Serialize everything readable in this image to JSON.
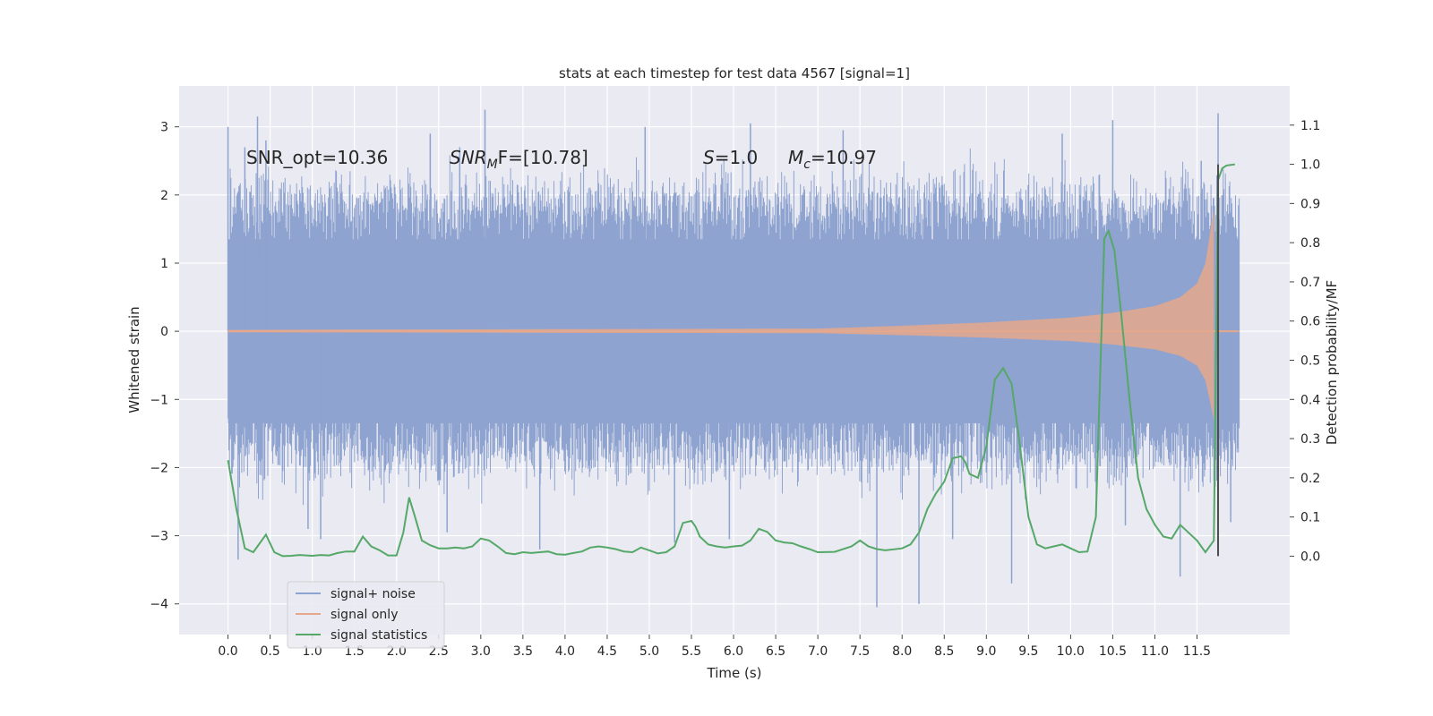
{
  "chart_data": {
    "type": "line",
    "title": "stats at each timestep for test data 4567 [signal=1]",
    "xlabel": "Time (s)",
    "ylabel": "Whitened strain",
    "ylabel_right": "Detection probability/MF",
    "xlim": [
      -0.58,
      12.6
    ],
    "ylim": [
      -4.45,
      3.6
    ],
    "ylim_right": [
      -0.2,
      1.2
    ],
    "xticks": [
      0.0,
      0.5,
      1.0,
      1.5,
      2.0,
      2.5,
      3.0,
      3.5,
      4.0,
      4.5,
      5.0,
      5.5,
      6.0,
      6.5,
      7.0,
      7.5,
      8.0,
      8.5,
      9.0,
      9.5,
      10.0,
      10.5,
      11.0,
      11.5
    ],
    "xtick_labels": [
      "0.0",
      "0.5",
      "1.0",
      "1.5",
      "2.0",
      "2.5",
      "3.0",
      "3.5",
      "4.0",
      "4.5",
      "5.0",
      "5.5",
      "6.0",
      "6.5",
      "7.0",
      "7.5",
      "8.0",
      "8.5",
      "9.0",
      "9.5",
      "10.0",
      "10.5",
      "11.0",
      "11.5"
    ],
    "yticks": [
      3,
      2,
      1,
      0,
      -1,
      -2,
      -3,
      -4
    ],
    "ytick_labels": [
      "3",
      "2",
      "1",
      "0",
      "−1",
      "−2",
      "−3",
      "−4"
    ],
    "yticks_right": [
      1.1,
      1.0,
      0.9,
      0.8,
      0.7,
      0.6,
      0.5,
      0.4,
      0.3,
      0.2,
      0.1,
      0.0
    ],
    "ytick_labels_right": [
      "1.1",
      "1.0",
      "0.9",
      "0.8",
      "0.7",
      "0.6",
      "0.5",
      "0.4",
      "0.3",
      "0.2",
      "0.1",
      "0.0"
    ],
    "grid": true,
    "legend_position": "lower-left",
    "annotations": {
      "snr_opt": "SNR_opt=10.36",
      "snr_mf_prefix": "SNR",
      "snr_mf_sub": "M",
      "snr_mf_suffix": "F=[10.78]",
      "s_prefix": "S",
      "s_suffix": "=1.0",
      "mc_prefix": "M",
      "mc_sub": "c",
      "mc_suffix": "=10.97"
    },
    "series": [
      {
        "name": "signal+ noise",
        "color": "#8ea3cf",
        "axis": "left",
        "description_range": [
          -4.1,
          3.3
        ],
        "typical_band": [
          -1.5,
          1.6
        ],
        "t_range": [
          0.0,
          12.0
        ],
        "spikes": [
          {
            "t": 0.0,
            "v": 3.0
          },
          {
            "t": 0.2,
            "v": 2.7
          },
          {
            "t": 0.35,
            "v": 3.15
          },
          {
            "t": 0.45,
            "v": 2.8
          },
          {
            "t": 0.12,
            "v": -3.35
          },
          {
            "t": 0.95,
            "v": -2.9
          },
          {
            "t": 1.1,
            "v": -3.05
          },
          {
            "t": 2.4,
            "v": 2.9
          },
          {
            "t": 2.6,
            "v": -2.95
          },
          {
            "t": 2.75,
            "v": 2.7
          },
          {
            "t": 3.05,
            "v": 3.25
          },
          {
            "t": 3.7,
            "v": -3.2
          },
          {
            "t": 4.95,
            "v": 3.0
          },
          {
            "t": 5.3,
            "v": -3.1
          },
          {
            "t": 5.95,
            "v": -3.05
          },
          {
            "t": 6.2,
            "v": 3.05
          },
          {
            "t": 7.3,
            "v": 2.95
          },
          {
            "t": 7.7,
            "v": -4.05
          },
          {
            "t": 8.2,
            "v": -4.0
          },
          {
            "t": 8.6,
            "v": -3.05
          },
          {
            "t": 9.3,
            "v": -3.7
          },
          {
            "t": 10.5,
            "v": 3.1
          },
          {
            "t": 10.65,
            "v": -2.85
          },
          {
            "t": 11.3,
            "v": -3.6
          },
          {
            "t": 11.55,
            "v": 2.5
          },
          {
            "t": 11.75,
            "v": 3.2
          },
          {
            "t": 11.9,
            "v": -2.8
          },
          {
            "t": 9.9,
            "v": 2.9
          }
        ]
      },
      {
        "name": "signal only",
        "color": "#e6a88c",
        "axis": "left",
        "t": [
          0.0,
          7.0,
          8.0,
          9.0,
          10.0,
          10.5,
          11.0,
          11.3,
          11.5,
          11.6,
          11.65,
          11.7
        ],
        "amplitude": [
          0.02,
          0.04,
          0.08,
          0.13,
          0.2,
          0.27,
          0.37,
          0.5,
          0.7,
          1.0,
          1.4,
          1.8
        ],
        "after_merger": 0.0
      },
      {
        "name": "signal statistics",
        "color": "#55a868",
        "axis": "right",
        "t": [
          0.0,
          0.1,
          0.2,
          0.3,
          0.35,
          0.45,
          0.55,
          0.65,
          0.75,
          0.85,
          1.0,
          1.1,
          1.2,
          1.3,
          1.4,
          1.5,
          1.6,
          1.7,
          1.8,
          1.9,
          2.0,
          2.08,
          2.15,
          2.22,
          2.3,
          2.4,
          2.5,
          2.6,
          2.7,
          2.8,
          2.9,
          3.0,
          3.1,
          3.2,
          3.3,
          3.4,
          3.5,
          3.6,
          3.7,
          3.8,
          3.9,
          4.0,
          4.1,
          4.2,
          4.3,
          4.4,
          4.5,
          4.6,
          4.7,
          4.8,
          4.9,
          5.0,
          5.1,
          5.2,
          5.3,
          5.4,
          5.5,
          5.55,
          5.6,
          5.7,
          5.8,
          5.9,
          6.0,
          6.1,
          6.2,
          6.3,
          6.4,
          6.5,
          6.6,
          6.7,
          6.8,
          6.9,
          7.0,
          7.2,
          7.4,
          7.5,
          7.6,
          7.7,
          7.8,
          8.0,
          8.1,
          8.2,
          8.3,
          8.4,
          8.5,
          8.6,
          8.7,
          8.75,
          8.8,
          8.9,
          9.0,
          9.1,
          9.2,
          9.3,
          9.4,
          9.5,
          9.6,
          9.7,
          9.8,
          9.9,
          10.0,
          10.1,
          10.2,
          10.3,
          10.4,
          10.45,
          10.52,
          10.6,
          10.7,
          10.8,
          10.9,
          11.0,
          11.1,
          11.2,
          11.3,
          11.4,
          11.5,
          11.6,
          11.7,
          11.75,
          11.8,
          11.85,
          11.95
        ],
        "values": [
          0.245,
          0.12,
          0.02,
          0.01,
          0.025,
          0.055,
          0.01,
          0.0,
          0.001,
          0.003,
          0.001,
          0.003,
          0.002,
          0.008,
          0.012,
          0.012,
          0.05,
          0.025,
          0.015,
          0.002,
          0.002,
          0.06,
          0.15,
          0.1,
          0.04,
          0.028,
          0.02,
          0.02,
          0.022,
          0.02,
          0.025,
          0.045,
          0.04,
          0.025,
          0.008,
          0.005,
          0.01,
          0.008,
          0.01,
          0.012,
          0.005,
          0.004,
          0.008,
          0.012,
          0.022,
          0.025,
          0.022,
          0.018,
          0.012,
          0.01,
          0.022,
          0.015,
          0.007,
          0.01,
          0.025,
          0.085,
          0.09,
          0.075,
          0.05,
          0.03,
          0.025,
          0.022,
          0.025,
          0.027,
          0.04,
          0.07,
          0.062,
          0.04,
          0.035,
          0.033,
          0.025,
          0.018,
          0.01,
          0.011,
          0.025,
          0.04,
          0.025,
          0.018,
          0.015,
          0.02,
          0.03,
          0.06,
          0.12,
          0.16,
          0.19,
          0.25,
          0.255,
          0.24,
          0.21,
          0.2,
          0.28,
          0.45,
          0.48,
          0.44,
          0.28,
          0.1,
          0.03,
          0.02,
          0.025,
          0.03,
          0.02,
          0.01,
          0.012,
          0.1,
          0.81,
          0.83,
          0.78,
          0.62,
          0.4,
          0.2,
          0.12,
          0.08,
          0.05,
          0.045,
          0.08,
          0.06,
          0.04,
          0.01,
          0.04,
          0.96,
          0.99,
          0.997,
          1.0
        ]
      },
      {
        "name": "",
        "color": "#4d4d4d",
        "axis": "right",
        "vertical_at": 11.75,
        "from": 0.0,
        "to": 1.0
      }
    ]
  }
}
